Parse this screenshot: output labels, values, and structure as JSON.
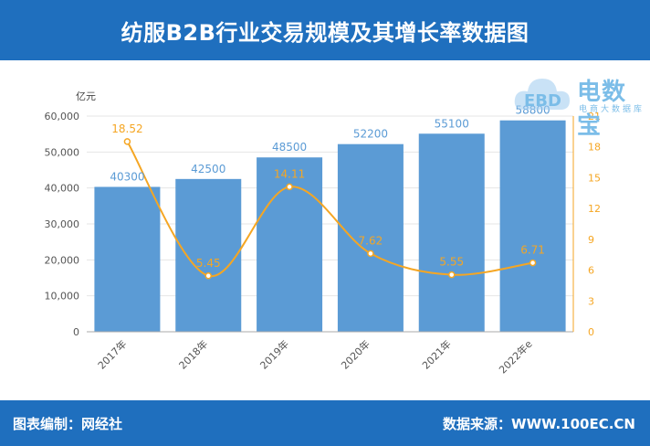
{
  "header": {
    "title": "纺服B2B行业交易规模及其增长率数据图"
  },
  "footer": {
    "left": "图表编制：网经社",
    "right": "数据来源：WWW.100EC.CN"
  },
  "logo": {
    "name": "电数宝",
    "tagline": "电商大数据库",
    "badge": "EBD"
  },
  "colors": {
    "bar": "#5b9bd5",
    "line": "#f5a623",
    "header": "#1f6fbe"
  },
  "chart_data": {
    "type": "bar",
    "title": "纺服B2B行业交易规模及其增长率数据图",
    "categories": [
      "2017年",
      "2018年",
      "2019年",
      "2020年",
      "2021年",
      "2022年e"
    ],
    "y_left_unit": "亿元",
    "ylim_left": [
      0,
      60000
    ],
    "yticks_left": [
      "0",
      "10,000",
      "20,000",
      "30,000",
      "40,000",
      "50,000",
      "60,000"
    ],
    "ylim_right": [
      0,
      21
    ],
    "yticks_right": [
      "0",
      "3",
      "6",
      "9",
      "12",
      "15",
      "18",
      "21"
    ],
    "series": [
      {
        "type": "bar",
        "axis": "left",
        "values": [
          40300,
          42500,
          48500,
          52200,
          55100,
          58800
        ],
        "labels": [
          "40300",
          "42500",
          "48500",
          "52200",
          "55100",
          "58800"
        ]
      },
      {
        "type": "line",
        "axis": "right",
        "smooth": true,
        "values": [
          18.52,
          5.45,
          14.11,
          7.62,
          5.55,
          6.71
        ],
        "labels": [
          "18.52",
          "5.45",
          "14.11",
          "7.62",
          "5.55",
          "6.71"
        ]
      }
    ],
    "grid": true,
    "legend": "none"
  }
}
